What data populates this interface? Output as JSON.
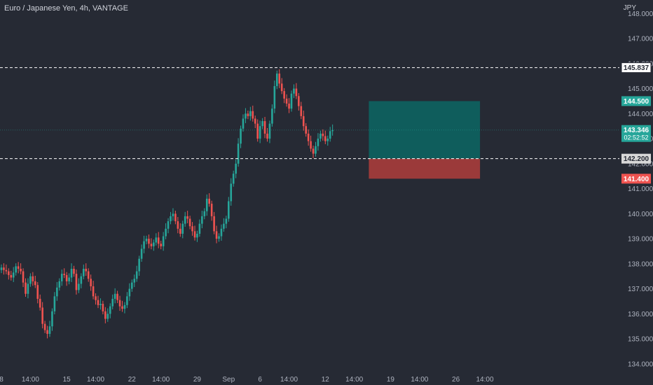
{
  "header": {
    "title": "Euro / Japanese Yen, 4h, VANTAGE"
  },
  "price_axis": {
    "currency": "JPY"
  },
  "colors": {
    "background": "#262a34",
    "up": "#26a69a",
    "down": "#ef5350",
    "profit_zone": "#0f5d5c",
    "loss_zone": "#9b3a3a",
    "dashed_line": "#ffffff"
  },
  "chart_data": {
    "type": "candlestick",
    "title": "Euro / Japanese Yen, 4h, VANTAGE",
    "y_axis": {
      "unit": "JPY",
      "ticks": [
        "148.000",
        "147.000",
        "146.000",
        "145.000",
        "144.000",
        "143.000",
        "142.000",
        "141.000",
        "140.000",
        "139.000",
        "138.000",
        "137.000",
        "136.000",
        "135.000",
        "134.000"
      ],
      "ylim": [
        133.8,
        148.4
      ]
    },
    "x_axis": {
      "ticks": [
        "8",
        "14:00",
        "15",
        "14:00",
        "22",
        "14:00",
        "29",
        "Sep",
        "6",
        "14:00",
        "12",
        "14:00",
        "19",
        "14:00",
        "26",
        "14:00"
      ],
      "tick_index": [
        0,
        12,
        27,
        39,
        54,
        66,
        81,
        94,
        107,
        119,
        134,
        146,
        161,
        173,
        188,
        200
      ]
    },
    "price_labels": {
      "level_145837": "145.837",
      "target": "144.500",
      "current": "143.346",
      "countdown": "02:52:52",
      "entry": "142.200",
      "stop": "141.400"
    },
    "levels": {
      "dashed_high": 145.837,
      "entry": 142.2,
      "target": 144.5,
      "stop": 141.4,
      "current": 143.346
    },
    "position": {
      "start_index": 152,
      "end_index": 198
    },
    "closes": [
      137.85,
      137.75,
      137.7,
      137.55,
      137.45,
      137.65,
      137.9,
      137.8,
      137.7,
      137.25,
      136.8,
      137.2,
      137.5,
      137.3,
      137.15,
      136.6,
      136.25,
      135.6,
      135.35,
      135.2,
      135.5,
      136.1,
      136.7,
      137.05,
      137.3,
      137.6,
      137.55,
      137.3,
      137.45,
      137.8,
      137.6,
      136.95,
      137.2,
      137.5,
      137.8,
      137.7,
      137.4,
      137.1,
      136.7,
      136.55,
      136.35,
      136.4,
      136.1,
      135.8,
      136.0,
      136.3,
      136.6,
      136.8,
      136.55,
      136.3,
      136.2,
      136.35,
      136.7,
      137.0,
      137.25,
      137.4,
      137.7,
      138.2,
      138.6,
      138.9,
      139.0,
      138.8,
      138.7,
      138.85,
      139.05,
      138.8,
      138.7,
      139.1,
      139.4,
      139.7,
      139.9,
      140.0,
      139.7,
      139.4,
      139.2,
      139.6,
      139.9,
      139.8,
      139.5,
      139.3,
      139.05,
      139.2,
      139.6,
      139.9,
      140.1,
      140.6,
      140.4,
      139.9,
      139.3,
      139.0,
      139.1,
      139.4,
      139.6,
      139.8,
      140.5,
      141.2,
      141.6,
      142.0,
      142.8,
      143.4,
      143.8,
      144.0,
      143.9,
      144.1,
      143.8,
      143.6,
      143.0,
      143.5,
      143.7,
      143.2,
      143.0,
      143.6,
      144.2,
      145.1,
      145.6,
      145.2,
      144.9,
      144.6,
      144.4,
      144.2,
      144.8,
      145.0,
      144.7,
      144.3,
      143.9,
      143.5,
      143.2,
      142.9,
      142.6,
      142.4,
      142.7,
      143.0,
      143.2,
      143.1,
      142.9,
      143.0,
      143.3,
      143.346
    ]
  }
}
